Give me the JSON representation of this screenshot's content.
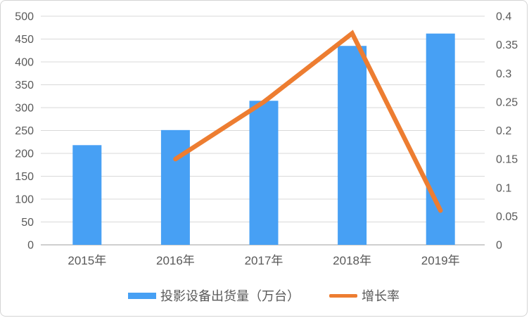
{
  "chart_data": {
    "type": "bar",
    "subtype": "combo-bar-line",
    "title": "",
    "categories": [
      "2015年",
      "2016年",
      "2017年",
      "2018年",
      "2019年"
    ],
    "series": [
      {
        "name": "投影设备出货量（万台）",
        "type": "bar",
        "axis": "left",
        "color": "#47A0F4",
        "values": [
          218,
          251,
          315,
          435,
          462
        ]
      },
      {
        "name": "增长率",
        "type": "line",
        "axis": "right",
        "color": "#ED7D31",
        "values": [
          null,
          0.15,
          0.25,
          0.37,
          0.06
        ]
      }
    ],
    "left_axis": {
      "min": 0,
      "max": 500,
      "step": 50,
      "ticks": [
        "0",
        "50",
        "100",
        "150",
        "200",
        "250",
        "300",
        "350",
        "400",
        "450",
        "500"
      ]
    },
    "right_axis": {
      "min": 0,
      "max": 0.4,
      "step": 0.05,
      "ticks": [
        "0",
        "0.05",
        "0.1",
        "0.15",
        "0.2",
        "0.25",
        "0.3",
        "0.35",
        "0.4"
      ]
    },
    "grid": true,
    "legend_position": "bottom",
    "colors": {
      "grid": "#D9D9D9",
      "baseline": "#BFBFBF",
      "axis_text": "#595959",
      "background": "#FFFFFF",
      "border": "#D4D4D4"
    }
  }
}
